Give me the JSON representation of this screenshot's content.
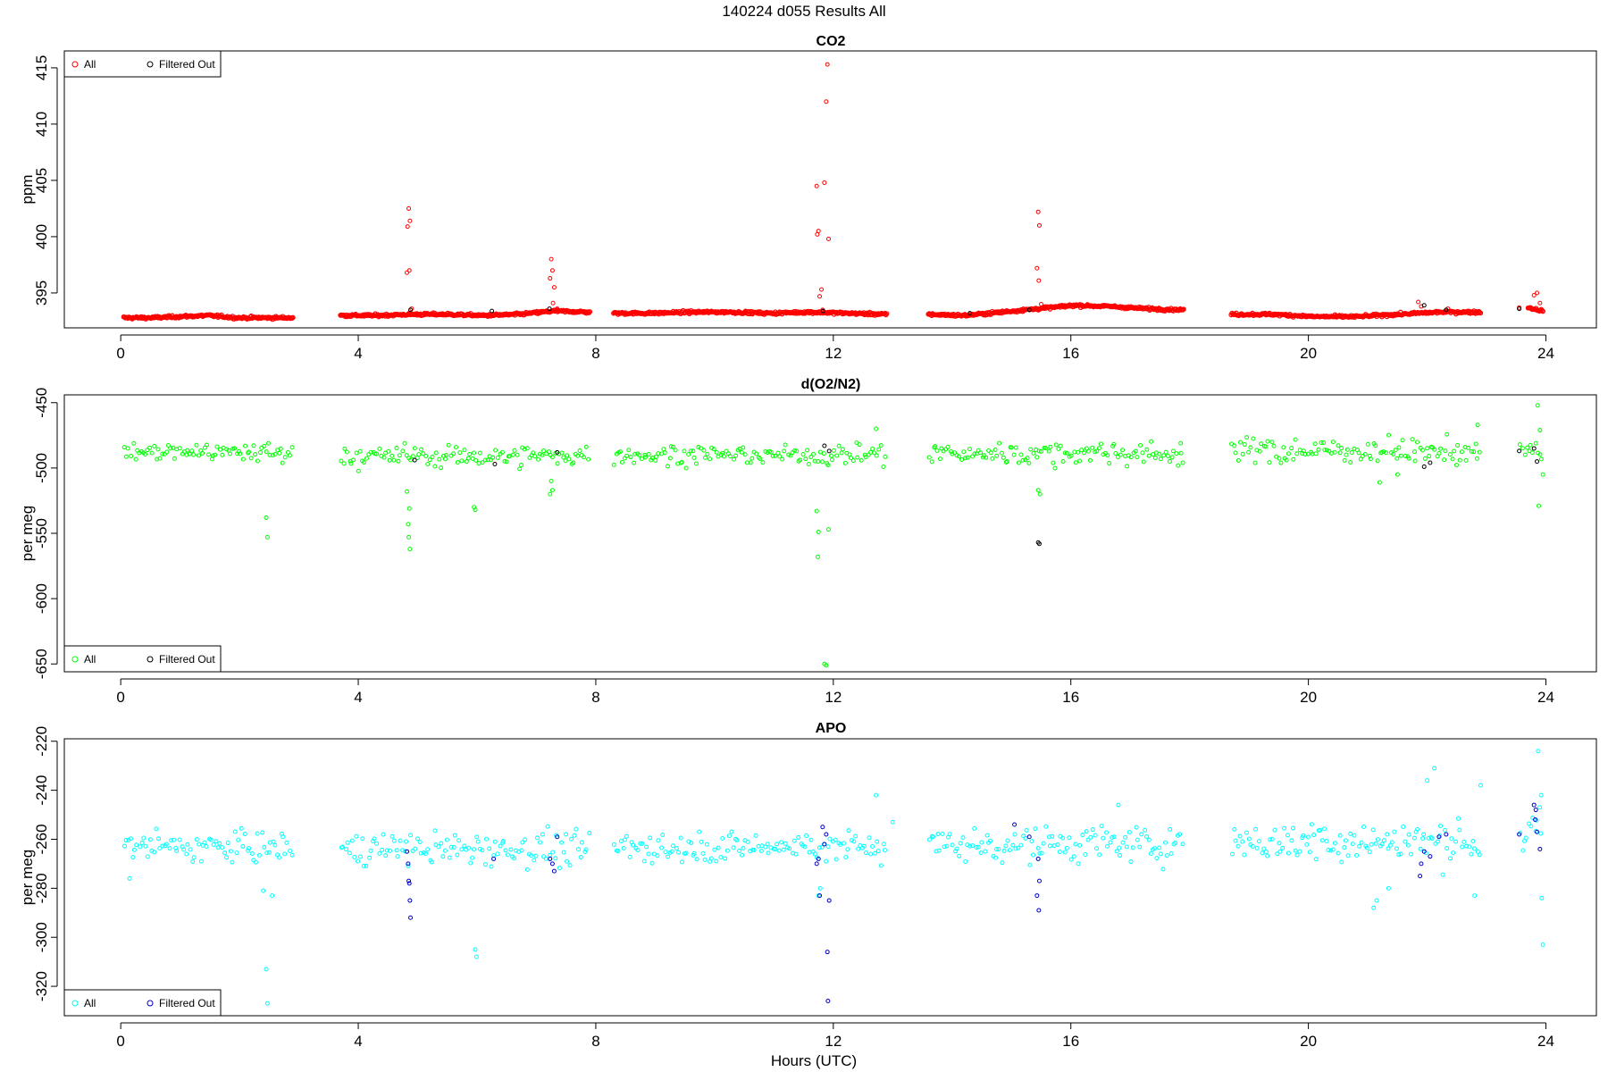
{
  "figure": {
    "title": "140224   d055   Results All",
    "xlabel": "Hours (UTC)"
  },
  "legend_labels": [
    "All",
    "Filtered Out"
  ],
  "colors": {
    "co2_all": "#ff0000",
    "co2_filtered": "#000000",
    "o2n2_all": "#00ff00",
    "o2n2_filtered": "#000000",
    "apo_all": "#00ffff",
    "apo_filtered": "#0000cc"
  },
  "chart_data": [
    {
      "type": "scatter",
      "title": "CO2",
      "xlabel": "Hours (UTC)",
      "ylabel": "ppm",
      "xlim": [
        -0.95,
        24.85
      ],
      "ylim": [
        391.9,
        416.5
      ],
      "xticks": [
        0,
        4,
        8,
        12,
        16,
        20,
        24
      ],
      "yticks": [
        395,
        400,
        405,
        410,
        415
      ],
      "legend_position": "top-left",
      "baseline_segments": [
        {
          "start": 0.05,
          "end": 2.9,
          "values": [
            392.8,
            392.8,
            392.9,
            393.0,
            392.8,
            392.8,
            392.8
          ]
        },
        {
          "start": 3.7,
          "end": 7.9,
          "values": [
            393.0,
            393.0,
            393.1,
            393.1,
            393.0,
            393.1,
            393.4,
            393.3
          ]
        },
        {
          "start": 8.3,
          "end": 12.9,
          "values": [
            393.2,
            393.2,
            393.3,
            393.3,
            393.2,
            393.3,
            393.2,
            393.1
          ]
        },
        {
          "start": 13.6,
          "end": 17.9,
          "values": [
            393.1,
            393.0,
            393.3,
            393.6,
            393.9,
            393.8,
            393.6,
            393.5
          ]
        },
        {
          "start": 18.7,
          "end": 22.9,
          "values": [
            393.1,
            393.1,
            392.9,
            392.9,
            393.1,
            393.3,
            393.3
          ]
        },
        {
          "start": 23.7,
          "end": 23.95,
          "values": [
            393.7,
            393.4
          ]
        }
      ],
      "series": [
        {
          "name": "All",
          "points": [
            [
              4.85,
              402.5
            ],
            [
              4.87,
              401.4
            ],
            [
              4.83,
              400.9
            ],
            [
              4.82,
              396.8
            ],
            [
              4.86,
              397.0
            ],
            [
              4.9,
              393.6
            ],
            [
              7.25,
              398.0
            ],
            [
              7.27,
              397.0
            ],
            [
              7.23,
              396.3
            ],
            [
              7.3,
              395.5
            ],
            [
              7.28,
              394.1
            ],
            [
              7.35,
              393.6
            ],
            [
              11.72,
              404.5
            ],
            [
              11.85,
              404.8
            ],
            [
              11.88,
              412.0
            ],
            [
              11.9,
              415.3
            ],
            [
              11.92,
              399.8
            ],
            [
              11.75,
              400.5
            ],
            [
              11.73,
              400.2
            ],
            [
              11.8,
              395.3
            ],
            [
              11.77,
              394.7
            ],
            [
              11.82,
              393.5
            ],
            [
              11.95,
              393.2
            ],
            [
              15.45,
              402.2
            ],
            [
              15.47,
              401.0
            ],
            [
              15.43,
              397.2
            ],
            [
              15.46,
              396.1
            ],
            [
              15.5,
              394.0
            ],
            [
              15.2,
              393.6
            ],
            [
              21.85,
              394.2
            ],
            [
              21.9,
              393.8
            ],
            [
              22.35,
              393.6
            ],
            [
              23.85,
              395.0
            ],
            [
              23.8,
              394.8
            ],
            [
              23.9,
              394.1
            ],
            [
              23.55,
              393.7
            ]
          ]
        },
        {
          "name": "Filtered Out",
          "points": [
            [
              4.88,
              393.5
            ],
            [
              6.25,
              393.4
            ],
            [
              7.22,
              393.6
            ],
            [
              11.83,
              393.4
            ],
            [
              14.3,
              393.2
            ],
            [
              15.3,
              393.5
            ],
            [
              21.95,
              393.9
            ],
            [
              22.32,
              393.5
            ],
            [
              23.55,
              393.6
            ]
          ]
        }
      ]
    },
    {
      "type": "scatter",
      "title": "d(O2/N2)",
      "xlabel": "Hours (UTC)",
      "ylabel": "per meg",
      "xlim": [
        -0.95,
        24.85
      ],
      "ylim": [
        -656,
        -444
      ],
      "xticks": [
        0,
        4,
        8,
        12,
        16,
        20,
        24
      ],
      "yticks": [
        -450,
        -500,
        -550,
        -600,
        -650
      ],
      "legend_position": "bottom-left",
      "cloud_segments": [
        {
          "start": 0.05,
          "end": 2.9,
          "center": -488,
          "spread": 7
        },
        {
          "start": 3.7,
          "end": 7.9,
          "center": -491,
          "spread": 8
        },
        {
          "start": 8.3,
          "end": 12.9,
          "center": -490,
          "spread": 7
        },
        {
          "start": 13.6,
          "end": 17.9,
          "center": -489,
          "spread": 8
        },
        {
          "start": 18.7,
          "end": 22.9,
          "center": -487,
          "spread": 9
        },
        {
          "start": 23.55,
          "end": 23.95,
          "center": -487,
          "spread": 10
        }
      ],
      "series": [
        {
          "name": "All",
          "points": [
            [
              2.45,
              -538
            ],
            [
              2.47,
              -553
            ],
            [
              4.82,
              -518
            ],
            [
              4.86,
              -531
            ],
            [
              4.84,
              -543
            ],
            [
              4.85,
              -553
            ],
            [
              4.87,
              -562
            ],
            [
              5.95,
              -530
            ],
            [
              5.97,
              -532
            ],
            [
              7.25,
              -510
            ],
            [
              7.27,
              -517
            ],
            [
              7.23,
              -520
            ],
            [
              11.72,
              -533
            ],
            [
              11.75,
              -549
            ],
            [
              11.74,
              -568
            ],
            [
              11.92,
              -547
            ],
            [
              11.85,
              -650
            ],
            [
              11.88,
              -651
            ],
            [
              15.45,
              -517
            ],
            [
              15.48,
              -520
            ],
            [
              12.72,
              -470
            ],
            [
              17.85,
              -481
            ],
            [
              22.85,
              -467
            ],
            [
              23.86,
              -452
            ],
            [
              23.88,
              -529
            ],
            [
              23.9,
              -471
            ],
            [
              23.95,
              -505
            ],
            [
              21.2,
              -511
            ],
            [
              21.5,
              -505
            ]
          ]
        },
        {
          "name": "Filtered Out",
          "points": [
            [
              4.95,
              -494
            ],
            [
              6.3,
              -497
            ],
            [
              7.35,
              -488
            ],
            [
              11.85,
              -483
            ],
            [
              11.93,
              -487
            ],
            [
              15.45,
              -557
            ],
            [
              15.47,
              -558
            ],
            [
              21.95,
              -499
            ],
            [
              22.05,
              -496
            ],
            [
              23.55,
              -487
            ],
            [
              23.8,
              -485
            ],
            [
              23.85,
              -495
            ]
          ]
        }
      ]
    },
    {
      "type": "scatter",
      "title": "APO",
      "xlabel": "Hours (UTC)",
      "ylabel": "per meg",
      "xlim": [
        -0.95,
        24.85
      ],
      "ylim": [
        -332,
        -219
      ],
      "xticks": [
        0,
        4,
        8,
        12,
        16,
        20,
        24
      ],
      "yticks": [
        -220,
        -240,
        -260,
        -280,
        -300,
        -320
      ],
      "legend_position": "bottom-left",
      "cloud_segments": [
        {
          "start": 0.05,
          "end": 2.9,
          "center": -263,
          "spread": 6
        },
        {
          "start": 3.7,
          "end": 7.9,
          "center": -264,
          "spread": 6
        },
        {
          "start": 8.3,
          "end": 12.9,
          "center": -263,
          "spread": 6
        },
        {
          "start": 13.6,
          "end": 17.9,
          "center": -262,
          "spread": 7
        },
        {
          "start": 18.7,
          "end": 22.9,
          "center": -261,
          "spread": 8
        },
        {
          "start": 23.55,
          "end": 23.95,
          "center": -258,
          "spread": 9
        }
      ],
      "series": [
        {
          "name": "All",
          "points": [
            [
              2.45,
              -313
            ],
            [
              2.47,
              -327
            ],
            [
              2.4,
              -281
            ],
            [
              2.55,
              -283
            ],
            [
              0.15,
              -276
            ],
            [
              5.97,
              -305
            ],
            [
              5.99,
              -308
            ],
            [
              11.75,
              -283
            ],
            [
              11.78,
              -280
            ],
            [
              12.72,
              -242
            ],
            [
              13.0,
              -253
            ],
            [
              16.8,
              -246
            ],
            [
              21.1,
              -288
            ],
            [
              21.15,
              -285
            ],
            [
              21.35,
              -280
            ],
            [
              22.0,
              -236
            ],
            [
              22.12,
              -231
            ],
            [
              22.8,
              -283
            ],
            [
              22.9,
              -238
            ],
            [
              23.87,
              -224
            ],
            [
              23.92,
              -242
            ],
            [
              23.93,
              -284
            ],
            [
              23.95,
              -303
            ]
          ]
        },
        {
          "name": "Filtered Out",
          "points": [
            [
              4.82,
              -265
            ],
            [
              4.84,
              -270
            ],
            [
              4.85,
              -277
            ],
            [
              4.86,
              -278
            ],
            [
              4.87,
              -285
            ],
            [
              4.88,
              -292
            ],
            [
              6.28,
              -268
            ],
            [
              7.23,
              -268
            ],
            [
              7.27,
              -270
            ],
            [
              7.3,
              -273
            ],
            [
              7.35,
              -259
            ],
            [
              11.72,
              -270
            ],
            [
              11.75,
              -268
            ],
            [
              11.77,
              -283
            ],
            [
              11.82,
              -255
            ],
            [
              11.88,
              -258
            ],
            [
              11.85,
              -262
            ],
            [
              11.93,
              -285
            ],
            [
              11.9,
              -306
            ],
            [
              11.91,
              -326
            ],
            [
              15.05,
              -254
            ],
            [
              15.45,
              -268
            ],
            [
              15.47,
              -277
            ],
            [
              15.43,
              -283
            ],
            [
              15.46,
              -289
            ],
            [
              15.3,
              -259
            ],
            [
              21.9,
              -270
            ],
            [
              21.88,
              -275
            ],
            [
              21.95,
              -265
            ],
            [
              22.05,
              -267
            ],
            [
              22.32,
              -258
            ],
            [
              22.2,
              -259
            ],
            [
              23.55,
              -258
            ],
            [
              23.8,
              -246
            ],
            [
              23.83,
              -248
            ],
            [
              23.82,
              -252
            ],
            [
              23.9,
              -264
            ],
            [
              23.85,
              -257
            ]
          ]
        }
      ]
    }
  ]
}
